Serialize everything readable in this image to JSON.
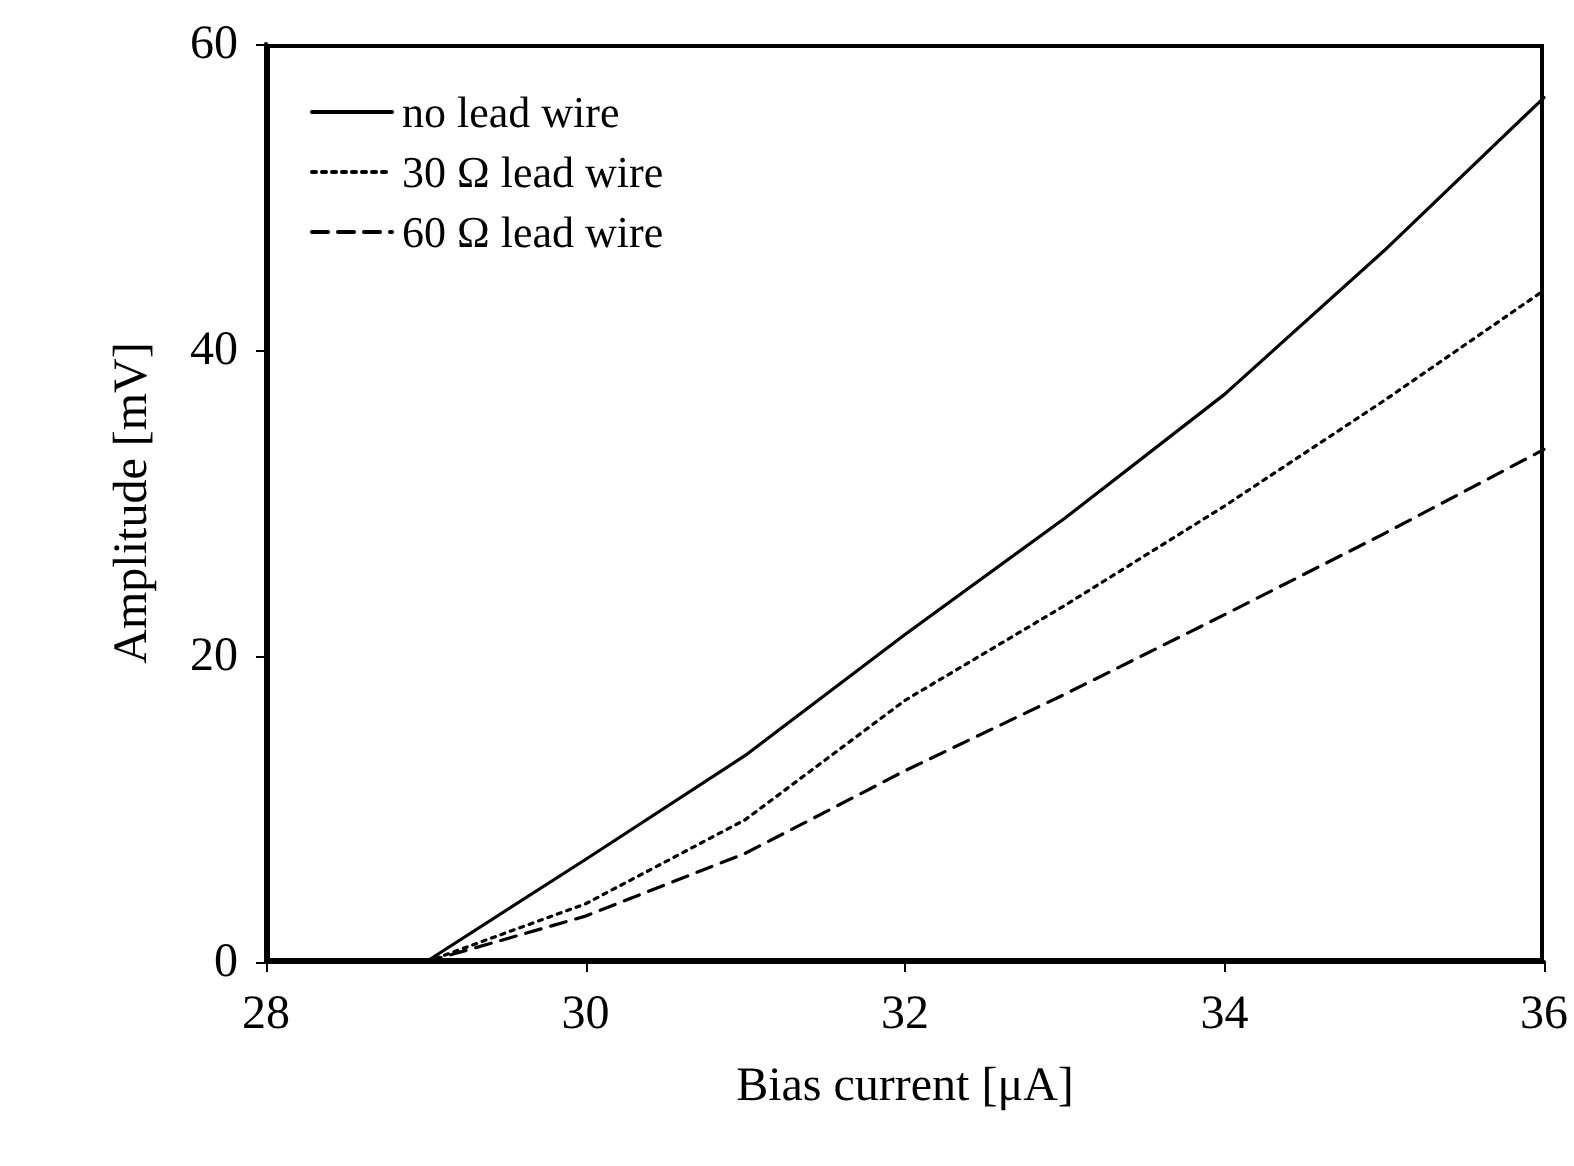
{
  "chart_data": {
    "type": "line",
    "xlabel": "Bias current [μA]",
    "ylabel": "Amplitude [mV]",
    "xlim": [
      28,
      36
    ],
    "xticks": [
      28,
      30,
      32,
      34,
      36
    ],
    "ylim": [
      0,
      60
    ],
    "yticks": [
      0,
      20,
      40,
      60
    ],
    "grid": false,
    "legend": "top left",
    "marker": "none",
    "series": [
      {
        "name": "no lead wire",
        "color": "#000000",
        "line_style": "solid",
        "x": [
          29,
          30,
          31,
          32,
          33,
          34,
          35,
          36
        ],
        "values": [
          0,
          6.7,
          13.5,
          21.4,
          29,
          37.1,
          46.5,
          56.5
        ]
      },
      {
        "name": "30 Ω lead wire",
        "color": "#000000",
        "line_style": "dotted",
        "x": [
          29,
          30,
          31,
          32,
          33,
          34,
          35,
          36
        ],
        "values": [
          0,
          3.8,
          9.3,
          17.1,
          23.3,
          29.8,
          36.7,
          43.9
        ]
      },
      {
        "name": "60 Ω lead wire",
        "color": "#000000",
        "line_style": "dashed",
        "x": [
          29,
          30,
          31,
          32,
          33,
          34,
          35,
          36
        ],
        "values": [
          0,
          3,
          7.1,
          12.5,
          17.5,
          22.7,
          28,
          33.5
        ]
      }
    ]
  }
}
